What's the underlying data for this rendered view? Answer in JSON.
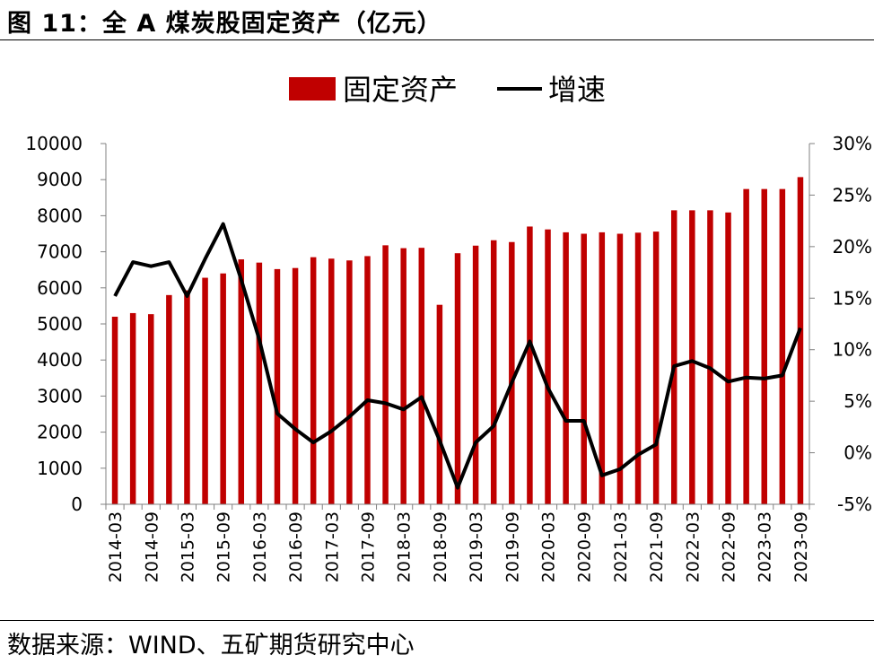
{
  "figure_title": "图 11：全 A 煤炭股固定资产（亿元）",
  "source": "数据来源：WIND、五矿期货研究中心",
  "colors": {
    "bar": "#c00000",
    "line": "#000000",
    "axis": "#808080"
  },
  "chart_data": {
    "type": "bar",
    "secondary_type": "line",
    "title": "",
    "xlabel": "",
    "ylabel": "",
    "legend": {
      "placement": "top-center",
      "entries": [
        "固定资产",
        "增速"
      ]
    },
    "grid": false,
    "ylim": [
      0,
      10000
    ],
    "y_ticks": [
      "0",
      "1000",
      "2000",
      "3000",
      "4000",
      "5000",
      "6000",
      "7000",
      "8000",
      "9000",
      "10000"
    ],
    "y2lim": [
      -5,
      30
    ],
    "y2_ticks": [
      "-5%",
      "0%",
      "5%",
      "10%",
      "15%",
      "20%",
      "25%",
      "30%"
    ],
    "x_tick_labels": [
      "2014-03",
      "2014-09",
      "2015-03",
      "2015-09",
      "2016-03",
      "2016-09",
      "2017-03",
      "2017-09",
      "2018-03",
      "2018-09",
      "2019-03",
      "2019-09",
      "2020-03",
      "2020-09",
      "2021-03",
      "2021-09",
      "2022-03",
      "2022-09",
      "2023-03",
      "2023-09"
    ],
    "categories": [
      "2014-03",
      "2014-06",
      "2014-09",
      "2014-12",
      "2015-03",
      "2015-06",
      "2015-09",
      "2015-12",
      "2016-03",
      "2016-06",
      "2016-09",
      "2016-12",
      "2017-03",
      "2017-06",
      "2017-09",
      "2017-12",
      "2018-03",
      "2018-06",
      "2018-09",
      "2018-12",
      "2019-03",
      "2019-06",
      "2019-09",
      "2019-12",
      "2020-03",
      "2020-06",
      "2020-09",
      "2020-12",
      "2021-03",
      "2021-06",
      "2021-09",
      "2021-12",
      "2022-03",
      "2022-06",
      "2022-09",
      "2022-12",
      "2023-03",
      "2023-06",
      "2023-09"
    ],
    "series": [
      {
        "name": "固定资产",
        "type": "bar",
        "axis": "left",
        "values": [
          5200,
          5300,
          5270,
          5800,
          5930,
          6280,
          6400,
          6790,
          6700,
          6520,
          6550,
          6850,
          6810,
          6760,
          6880,
          7180,
          7100,
          7110,
          5530,
          6960,
          7170,
          7320,
          7270,
          7700,
          7620,
          7540,
          7500,
          7540,
          7500,
          7530,
          7560,
          8150,
          8150,
          8150,
          8090,
          8740,
          8740,
          8740,
          9070
        ]
      },
      {
        "name": "增速",
        "type": "line",
        "axis": "right",
        "values": [
          15.2,
          18.5,
          18.1,
          18.5,
          15.2,
          18.8,
          22.2,
          16.8,
          11.0,
          3.8,
          2.3,
          1.0,
          2.1,
          3.5,
          5.1,
          4.8,
          4.2,
          5.4,
          1.2,
          -3.4,
          1.0,
          2.6,
          6.8,
          10.8,
          6.3,
          3.1,
          3.1,
          -2.2,
          -1.6,
          -0.2,
          0.8,
          8.4,
          8.9,
          8.2,
          6.9,
          7.3,
          7.2,
          7.5,
          12.1
        ]
      }
    ]
  }
}
